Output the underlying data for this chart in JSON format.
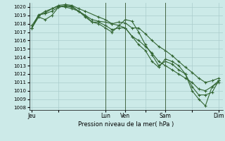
{
  "bg_color": "#cceae8",
  "grid_color": "#aacccc",
  "line_color": "#336633",
  "ylabel_min": 1008,
  "ylabel_max": 1020,
  "xlabel_label": "Pression niveau de la mer( hPa )",
  "xtick_labels": [
    "Jeu",
    "",
    "Lun",
    "Ven",
    "",
    "Sam",
    "",
    "Dim"
  ],
  "xtick_positions": [
    0.0,
    2.0,
    5.5,
    7.0,
    8.5,
    10.0,
    12.0,
    14.0
  ],
  "vlines": [
    5.5,
    7.0,
    10.0
  ],
  "xlim": [
    -0.2,
    14.3
  ],
  "series1_x": [
    0.0,
    0.5,
    1.0,
    1.5,
    2.0,
    2.5,
    3.0,
    3.5,
    4.0,
    4.5,
    5.0,
    5.5,
    6.0,
    6.5,
    7.0,
    7.5,
    8.0,
    8.5,
    9.0,
    9.5,
    10.0,
    10.5,
    11.0,
    11.5,
    12.0,
    12.5,
    13.0,
    13.5,
    14.0
  ],
  "series1_y": [
    1017.5,
    1019.1,
    1019.2,
    1019.5,
    1020.0,
    1020.2,
    1020.1,
    1019.5,
    1019.0,
    1018.5,
    1018.3,
    1018.2,
    1018.0,
    1018.2,
    1018.1,
    1017.5,
    1017.5,
    1016.8,
    1016.0,
    1015.3,
    1014.8,
    1014.2,
    1013.5,
    1012.8,
    1012.2,
    1011.5,
    1011.0,
    1011.2,
    1011.5
  ],
  "series2_x": [
    0.0,
    0.5,
    1.0,
    1.5,
    2.0,
    2.5,
    3.0,
    3.5,
    4.0,
    5.0,
    5.5,
    6.0,
    6.5,
    7.0,
    7.5,
    8.0,
    8.5,
    9.0,
    9.5,
    10.0,
    10.5,
    11.0,
    11.5,
    12.0,
    12.5,
    13.0,
    13.5,
    14.0
  ],
  "series2_y": [
    1017.8,
    1019.0,
    1019.5,
    1019.8,
    1020.2,
    1020.3,
    1020.2,
    1019.8,
    1019.5,
    1018.8,
    1018.5,
    1018.0,
    1017.8,
    1017.5,
    1016.5,
    1016.0,
    1015.3,
    1014.5,
    1013.5,
    1013.0,
    1012.5,
    1012.0,
    1011.5,
    1011.0,
    1010.2,
    1010.0,
    1010.5,
    1011.0
  ],
  "series3_x": [
    0.0,
    0.5,
    1.0,
    1.5,
    2.0,
    2.5,
    3.0,
    3.5,
    4.0,
    4.5,
    5.0,
    5.5,
    6.0,
    6.5,
    7.0,
    7.5,
    8.0,
    8.5,
    9.0,
    9.5,
    10.0,
    10.5,
    11.0,
    11.5,
    12.0,
    12.5,
    13.0,
    13.5,
    14.0
  ],
  "series3_y": [
    1017.5,
    1019.0,
    1019.3,
    1019.8,
    1020.1,
    1020.0,
    1019.8,
    1019.5,
    1018.8,
    1018.2,
    1018.2,
    1017.8,
    1017.3,
    1017.5,
    1017.5,
    1016.5,
    1015.5,
    1014.8,
    1013.5,
    1012.8,
    1013.8,
    1013.5,
    1013.0,
    1012.0,
    1010.5,
    1009.5,
    1009.5,
    1009.8,
    1011.2
  ],
  "series4_x": [
    0.0,
    0.5,
    1.0,
    1.5,
    2.0,
    2.5,
    3.0,
    3.5,
    4.0,
    4.5,
    5.0,
    5.5,
    6.0,
    7.0,
    7.5,
    8.0,
    8.5,
    9.0,
    9.5,
    10.0,
    10.5,
    11.0,
    11.5,
    12.0,
    12.5,
    13.0,
    13.5,
    14.0
  ],
  "series4_y": [
    1017.5,
    1018.8,
    1018.5,
    1019.0,
    1020.0,
    1020.1,
    1020.0,
    1019.5,
    1019.0,
    1018.2,
    1018.0,
    1017.5,
    1017.0,
    1018.5,
    1018.3,
    1017.0,
    1015.5,
    1014.3,
    1013.0,
    1013.5,
    1013.2,
    1012.5,
    1012.0,
    1010.0,
    1009.0,
    1008.2,
    1010.5,
    1011.2
  ]
}
